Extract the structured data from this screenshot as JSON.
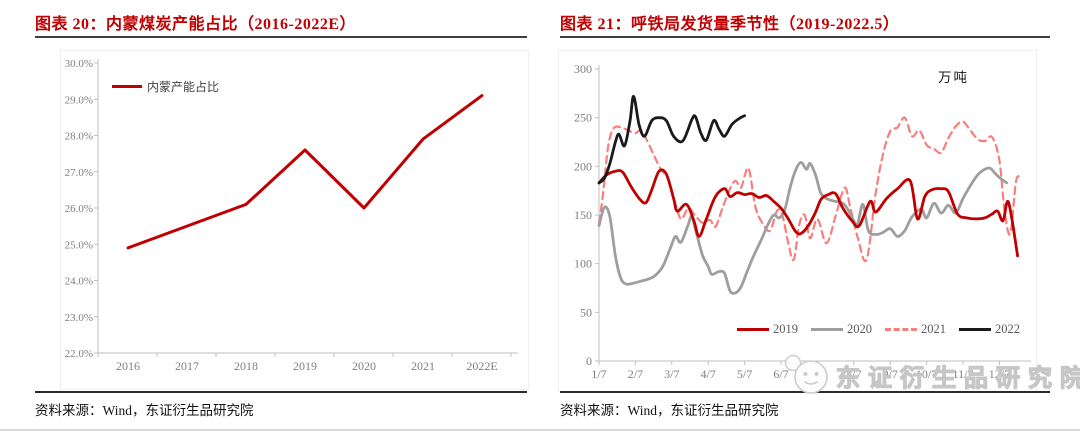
{
  "panels": [
    {
      "title": "图表 20：内蒙煤炭产能占比（2016-2022E）",
      "source": "资料来源：Wind，东证衍生品研究院"
    },
    {
      "title": "图表 21：呼铁局发货量季节性（2019-2022.5）",
      "source": "资料来源：Wind，东证衍生品研究院"
    }
  ],
  "watermark": {
    "text": "东证衍生品研究院"
  },
  "colors": {
    "accent_red": "#c00000",
    "dashed_pink": "#f87e7e",
    "gray_series": "#9e9e9e",
    "black_series": "#1a1a1a",
    "axis_line": "#bfbfbf",
    "tick_text": "#7f7f7f"
  },
  "chart_data": [
    {
      "type": "line",
      "title": "图表 20：内蒙煤炭产能占比（2016-2022E）",
      "xlabel": "",
      "ylabel": "",
      "unit": "%",
      "grid": false,
      "legend_position": "top-left",
      "categories": [
        "2016",
        "2017",
        "2018",
        "2019",
        "2020",
        "2021",
        "2022E"
      ],
      "series": [
        {
          "name": "内蒙产能占比",
          "color": "#c00000",
          "width": 3,
          "dash": null,
          "values": [
            24.9,
            25.5,
            26.1,
            27.6,
            26.0,
            27.9,
            29.1
          ]
        }
      ],
      "ylim": [
        22,
        30
      ],
      "yticks": [
        {
          "v": 30,
          "label": "30.0%"
        },
        {
          "v": 29,
          "label": "29.0%"
        },
        {
          "v": 28,
          "label": "28.0%"
        },
        {
          "v": 27,
          "label": "27.0%"
        },
        {
          "v": 26,
          "label": "26.0%"
        },
        {
          "v": 25,
          "label": "25.0%"
        },
        {
          "v": 24,
          "label": "24.0%"
        },
        {
          "v": 23,
          "label": "23.0%"
        },
        {
          "v": 22,
          "label": "22.0%"
        }
      ]
    },
    {
      "type": "line",
      "title": "图表 21：呼铁局发货量季节性（2019-2022.5）",
      "xlabel": "",
      "ylabel": "",
      "unit": "万吨",
      "grid": false,
      "legend_position": "bottom-right",
      "xlim": [
        0.85,
        12.85
      ],
      "ylim": [
        0,
        300
      ],
      "xticks": [
        {
          "v": 1,
          "label": "1/7"
        },
        {
          "v": 2,
          "label": "2/7"
        },
        {
          "v": 3,
          "label": "3/7"
        },
        {
          "v": 4,
          "label": "4/7"
        },
        {
          "v": 5,
          "label": "5/7"
        },
        {
          "v": 6,
          "label": "6/7"
        },
        {
          "v": 7,
          "label": "7/7"
        },
        {
          "v": 8,
          "label": "8/7"
        },
        {
          "v": 9,
          "label": "9/7"
        },
        {
          "v": 10,
          "label": "10/7"
        },
        {
          "v": 11,
          "label": "11/7"
        },
        {
          "v": 12,
          "label": "12/7"
        }
      ],
      "yticks": [
        {
          "v": 0,
          "label": "0"
        },
        {
          "v": 50,
          "label": "50"
        },
        {
          "v": 100,
          "label": "100"
        },
        {
          "v": 150,
          "label": "150"
        },
        {
          "v": 200,
          "label": "200"
        },
        {
          "v": 250,
          "label": "250"
        },
        {
          "v": 300,
          "label": "300"
        }
      ],
      "series": [
        {
          "name": "2021",
          "color": "#f87e7e",
          "width": 2.2,
          "dash": "7 5",
          "points": [
            [
              1.0,
              142
            ],
            [
              1.1,
              168
            ],
            [
              1.25,
              220
            ],
            [
              1.4,
              239
            ],
            [
              1.6,
              240
            ],
            [
              1.8,
              237
            ],
            [
              2.0,
              234
            ],
            [
              2.15,
              237
            ],
            [
              2.3,
              228
            ],
            [
              2.5,
              212
            ],
            [
              2.7,
              197
            ],
            [
              2.9,
              187
            ],
            [
              3.05,
              168
            ],
            [
              3.25,
              146
            ],
            [
              3.45,
              157
            ],
            [
              3.65,
              149
            ],
            [
              3.85,
              142
            ],
            [
              4.05,
              145
            ],
            [
              4.2,
              138
            ],
            [
              4.4,
              158
            ],
            [
              4.6,
              177
            ],
            [
              4.75,
              185
            ],
            [
              4.9,
              178
            ],
            [
              5.0,
              190
            ],
            [
              5.12,
              197
            ],
            [
              5.3,
              158
            ],
            [
              5.5,
              141
            ],
            [
              5.7,
              134
            ],
            [
              5.9,
              155
            ],
            [
              6.05,
              148
            ],
            [
              6.2,
              121
            ],
            [
              6.35,
              104
            ],
            [
              6.5,
              140
            ],
            [
              6.65,
              150
            ],
            [
              6.8,
              126
            ],
            [
              7.0,
              146
            ],
            [
              7.25,
              121
            ],
            [
              7.5,
              149
            ],
            [
              7.75,
              178
            ],
            [
              7.9,
              158
            ],
            [
              8.1,
              128
            ],
            [
              8.35,
              104
            ],
            [
              8.6,
              172
            ],
            [
              8.8,
              212
            ],
            [
              9.0,
              236
            ],
            [
              9.2,
              240
            ],
            [
              9.4,
              250
            ],
            [
              9.6,
              231
            ],
            [
              9.8,
              237
            ],
            [
              10.0,
              222
            ],
            [
              10.2,
              218
            ],
            [
              10.4,
              214
            ],
            [
              10.6,
              229
            ],
            [
              10.8,
              241
            ],
            [
              11.0,
              246
            ],
            [
              11.2,
              237
            ],
            [
              11.4,
              228
            ],
            [
              11.6,
              226
            ],
            [
              11.8,
              230
            ],
            [
              12.0,
              206
            ],
            [
              12.15,
              152
            ],
            [
              12.3,
              131
            ],
            [
              12.45,
              183
            ],
            [
              12.55,
              190
            ]
          ]
        },
        {
          "name": "2020",
          "color": "#9e9e9e",
          "width": 2.8,
          "dash": null,
          "points": [
            [
              1.0,
              139
            ],
            [
              1.15,
              158
            ],
            [
              1.3,
              148
            ],
            [
              1.45,
              108
            ],
            [
              1.6,
              85
            ],
            [
              1.75,
              79
            ],
            [
              1.95,
              80
            ],
            [
              2.15,
              82
            ],
            [
              2.35,
              84
            ],
            [
              2.55,
              88
            ],
            [
              2.75,
              97
            ],
            [
              2.95,
              115
            ],
            [
              3.1,
              128
            ],
            [
              3.25,
              122
            ],
            [
              3.45,
              140
            ],
            [
              3.55,
              148
            ],
            [
              3.7,
              128
            ],
            [
              3.85,
              108
            ],
            [
              4.0,
              97
            ],
            [
              4.1,
              89
            ],
            [
              4.3,
              92
            ],
            [
              4.45,
              90
            ],
            [
              4.6,
              72
            ],
            [
              4.75,
              70
            ],
            [
              4.9,
              76
            ],
            [
              5.05,
              90
            ],
            [
              5.2,
              104
            ],
            [
              5.35,
              116
            ],
            [
              5.5,
              128
            ],
            [
              5.65,
              141
            ],
            [
              5.8,
              150
            ],
            [
              5.95,
              147
            ],
            [
              6.1,
              155
            ],
            [
              6.25,
              178
            ],
            [
              6.4,
              196
            ],
            [
              6.55,
              204
            ],
            [
              6.7,
              197
            ],
            [
              6.8,
              203
            ],
            [
              6.95,
              191
            ],
            [
              7.1,
              172
            ],
            [
              7.3,
              166
            ],
            [
              7.5,
              164
            ],
            [
              7.7,
              162
            ],
            [
              7.85,
              155
            ],
            [
              8.0,
              144
            ],
            [
              8.1,
              140
            ],
            [
              8.25,
              161
            ],
            [
              8.4,
              134
            ],
            [
              8.6,
              130
            ],
            [
              8.8,
              132
            ],
            [
              9.0,
              136
            ],
            [
              9.2,
              128
            ],
            [
              9.4,
              134
            ],
            [
              9.6,
              148
            ],
            [
              9.85,
              156
            ],
            [
              10.0,
              147
            ],
            [
              10.2,
              162
            ],
            [
              10.4,
              152
            ],
            [
              10.6,
              160
            ],
            [
              10.8,
              152
            ],
            [
              11.0,
              167
            ],
            [
              11.2,
              180
            ],
            [
              11.4,
              191
            ],
            [
              11.6,
              197
            ],
            [
              11.75,
              198
            ],
            [
              11.9,
              192
            ],
            [
              12.05,
              187
            ],
            [
              12.2,
              183
            ]
          ]
        },
        {
          "name": "2019",
          "color": "#c00000",
          "width": 2.8,
          "dash": null,
          "points": [
            [
              1.0,
              183
            ],
            [
              1.2,
              191
            ],
            [
              1.45,
              195
            ],
            [
              1.65,
              194
            ],
            [
              1.9,
              178
            ],
            [
              2.15,
              165
            ],
            [
              2.3,
              163
            ],
            [
              2.45,
              176
            ],
            [
              2.65,
              195
            ],
            [
              2.85,
              192
            ],
            [
              3.05,
              167
            ],
            [
              3.15,
              154
            ],
            [
              3.4,
              161
            ],
            [
              3.6,
              145
            ],
            [
              3.75,
              128
            ],
            [
              3.95,
              146
            ],
            [
              4.2,
              169
            ],
            [
              4.45,
              177
            ],
            [
              4.6,
              169
            ],
            [
              4.8,
              173
            ],
            [
              5.0,
              171
            ],
            [
              5.2,
              172
            ],
            [
              5.4,
              168
            ],
            [
              5.6,
              170
            ],
            [
              5.8,
              164
            ],
            [
              6.0,
              157
            ],
            [
              6.2,
              146
            ],
            [
              6.4,
              133
            ],
            [
              6.55,
              131
            ],
            [
              6.75,
              139
            ],
            [
              6.95,
              153
            ],
            [
              7.1,
              166
            ],
            [
              7.3,
              171
            ],
            [
              7.5,
              172
            ],
            [
              7.7,
              157
            ],
            [
              7.95,
              144
            ],
            [
              8.15,
              139
            ],
            [
              8.45,
              164
            ],
            [
              8.6,
              153
            ],
            [
              8.9,
              167
            ],
            [
              9.2,
              177
            ],
            [
              9.55,
              185
            ],
            [
              9.75,
              146
            ],
            [
              9.95,
              169
            ],
            [
              10.15,
              176
            ],
            [
              10.4,
              177
            ],
            [
              10.6,
              174
            ],
            [
              10.85,
              151
            ],
            [
              11.1,
              147
            ],
            [
              11.35,
              146
            ],
            [
              11.6,
              147
            ],
            [
              11.8,
              151
            ],
            [
              11.95,
              154
            ],
            [
              12.1,
              144
            ],
            [
              12.25,
              163
            ],
            [
              12.5,
              108
            ]
          ]
        },
        {
          "name": "2022",
          "color": "#1a1a1a",
          "width": 2.8,
          "dash": null,
          "points": [
            [
              1.0,
              183
            ],
            [
              1.15,
              188
            ],
            [
              1.3,
              203
            ],
            [
              1.45,
              225
            ],
            [
              1.55,
              233
            ],
            [
              1.7,
              221
            ],
            [
              1.85,
              246
            ],
            [
              1.95,
              272
            ],
            [
              2.1,
              243
            ],
            [
              2.25,
              231
            ],
            [
              2.45,
              247
            ],
            [
              2.65,
              250
            ],
            [
              2.85,
              247
            ],
            [
              3.05,
              231
            ],
            [
              3.3,
              226
            ],
            [
              3.55,
              248
            ],
            [
              3.65,
              251
            ],
            [
              3.8,
              234
            ],
            [
              3.95,
              227
            ],
            [
              4.15,
              247
            ],
            [
              4.3,
              238
            ],
            [
              4.45,
              231
            ],
            [
              4.65,
              243
            ],
            [
              4.85,
              249
            ],
            [
              5.0,
              252
            ]
          ]
        }
      ],
      "legend_order": [
        "2019",
        "2020",
        "2021",
        "2022"
      ]
    }
  ]
}
